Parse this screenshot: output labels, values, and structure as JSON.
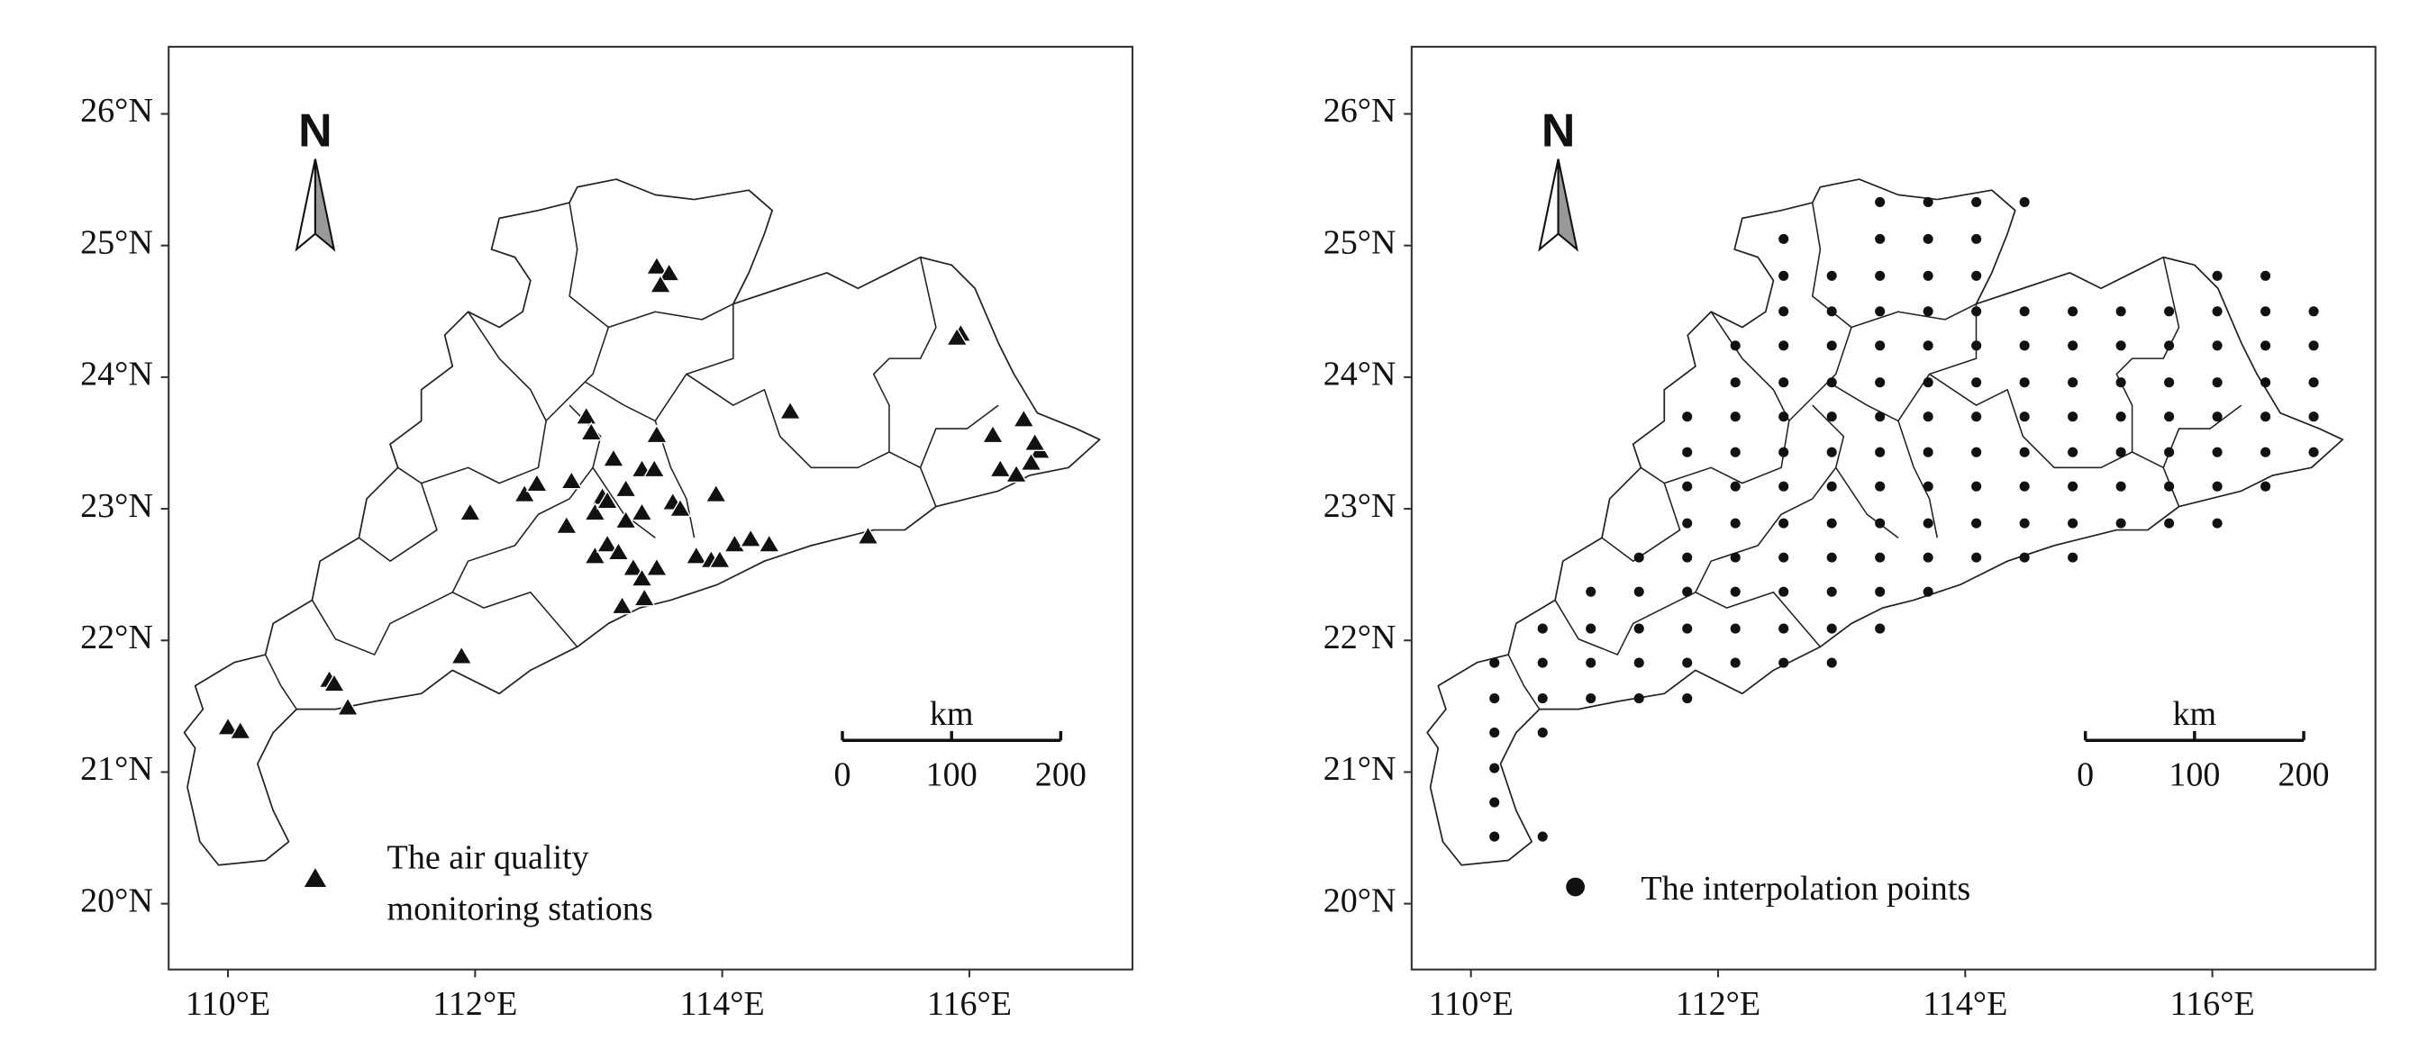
{
  "maps": [
    {
      "xlim": [
        109.52,
        117.32
      ],
      "ylim": [
        19.5,
        26.51
      ],
      "xticks": [
        {
          "value": 110,
          "label": "110°E"
        },
        {
          "value": 112,
          "label": "112°E"
        },
        {
          "value": 114,
          "label": "114°E"
        },
        {
          "value": 116,
          "label": "116°E"
        }
      ],
      "yticks": [
        {
          "value": 20,
          "label": "20°N"
        },
        {
          "value": 21,
          "label": "21°N"
        },
        {
          "value": 22,
          "label": "22°N"
        },
        {
          "value": 23,
          "label": "23°N"
        },
        {
          "value": 24,
          "label": "24°N"
        },
        {
          "value": 25,
          "label": "25°N"
        },
        {
          "value": 26,
          "label": "26°N"
        }
      ],
      "north": "N",
      "scale_bar": {
        "unit": "km",
        "ticks": [
          0,
          100,
          200
        ]
      },
      "legend": [
        "The air quality",
        "monitoring stations"
      ],
      "stations": {
        "lon": [
          113.47,
          113.57,
          113.5,
          115.93,
          115.9,
          114.55,
          116.19,
          116.44,
          116.25,
          116.57,
          116.5,
          116.38,
          116.53,
          112.9,
          112.94,
          111.96,
          112.4,
          112.5,
          112.78,
          113.12,
          113.47,
          113.35,
          113.03,
          113.22,
          113.45,
          112.74,
          112.97,
          113.07,
          113.22,
          113.35,
          113.6,
          113.66,
          113.95,
          112.97,
          113.07,
          113.16,
          113.28,
          113.35,
          113.47,
          113.19,
          113.37,
          113.79,
          113.91,
          114.1,
          114.23,
          114.38,
          113.98,
          115.18,
          111.89,
          110.82,
          110.86,
          110.97,
          110.0,
          110.1
        ],
        "lat": [
          24.83,
          24.78,
          24.69,
          24.32,
          24.29,
          23.73,
          23.55,
          23.67,
          23.29,
          23.43,
          23.34,
          23.25,
          23.49,
          23.69,
          23.57,
          22.96,
          23.1,
          23.18,
          23.2,
          23.37,
          23.55,
          23.29,
          23.08,
          23.14,
          23.29,
          22.86,
          22.96,
          23.05,
          22.9,
          22.96,
          23.04,
          22.99,
          23.1,
          22.63,
          22.72,
          22.66,
          22.54,
          22.46,
          22.54,
          22.25,
          22.31,
          22.63,
          22.6,
          22.72,
          22.76,
          22.72,
          22.6,
          22.78,
          21.87,
          21.69,
          21.66,
          21.48,
          21.33,
          21.3
        ]
      }
    },
    {
      "xlim": [
        109.52,
        117.32
      ],
      "ylim": [
        19.5,
        26.51
      ],
      "xticks": [
        {
          "value": 110,
          "label": "110°E"
        },
        {
          "value": 112,
          "label": "112°E"
        },
        {
          "value": 114,
          "label": "114°E"
        },
        {
          "value": 116,
          "label": "116°E"
        }
      ],
      "yticks": [
        {
          "value": 20,
          "label": "20°N"
        },
        {
          "value": 21,
          "label": "21°N"
        },
        {
          "value": 22,
          "label": "22°N"
        },
        {
          "value": 23,
          "label": "23°N"
        },
        {
          "value": 24,
          "label": "24°N"
        },
        {
          "value": 25,
          "label": "25°N"
        },
        {
          "value": 26,
          "label": "26°N"
        }
      ],
      "north": "N",
      "scale_bar": {
        "unit": "km",
        "ticks": [
          0,
          100,
          200
        ]
      },
      "legend": [
        "The interpolation points"
      ],
      "points": [
        {
          "lat": 25.33,
          "lon": [
            113.31,
            113.7,
            114.09,
            114.48
          ]
        },
        {
          "lat": 25.05,
          "lon": [
            112.53,
            113.31,
            113.7,
            114.09
          ]
        },
        {
          "lat": 24.77,
          "lon": [
            112.53,
            112.92,
            113.31,
            113.7,
            114.09,
            116.04,
            116.43
          ]
        },
        {
          "lat": 24.5,
          "lon": [
            112.53,
            112.92,
            113.31,
            113.7,
            114.09,
            114.48,
            114.87,
            115.26,
            115.65,
            116.04,
            116.43,
            116.82
          ]
        },
        {
          "lat": 24.24,
          "lon": [
            112.14,
            112.53,
            112.92,
            113.31,
            113.7,
            114.09,
            114.48,
            114.87,
            115.26,
            115.65,
            116.04,
            116.43,
            116.82
          ]
        },
        {
          "lat": 23.96,
          "lon": [
            112.14,
            112.53,
            112.92,
            113.31,
            113.7,
            114.09,
            114.48,
            114.87,
            115.26,
            115.65,
            116.04,
            116.43,
            116.82
          ]
        },
        {
          "lat": 23.7,
          "lon": [
            111.75,
            112.14,
            112.53,
            112.92,
            113.31,
            113.7,
            114.09,
            114.48,
            114.87,
            115.26,
            115.65,
            116.04,
            116.43,
            116.82
          ]
        },
        {
          "lat": 23.43,
          "lon": [
            111.75,
            112.14,
            112.53,
            112.92,
            113.31,
            113.7,
            114.09,
            114.48,
            114.87,
            115.26,
            115.65,
            116.04,
            116.43,
            116.82
          ]
        },
        {
          "lat": 23.17,
          "lon": [
            111.75,
            112.14,
            112.53,
            112.92,
            113.31,
            113.7,
            114.09,
            114.48,
            114.87,
            115.26,
            115.65,
            116.04,
            116.43
          ]
        },
        {
          "lat": 22.89,
          "lon": [
            111.75,
            112.14,
            112.53,
            112.92,
            113.31,
            113.7,
            114.09,
            114.48,
            114.87,
            115.26,
            115.65,
            116.04
          ]
        },
        {
          "lat": 22.63,
          "lon": [
            111.36,
            111.75,
            112.14,
            112.53,
            112.92,
            113.31,
            113.7,
            114.09,
            114.48,
            114.87
          ]
        },
        {
          "lat": 22.37,
          "lon": [
            110.97,
            111.36,
            111.75,
            112.14,
            112.53,
            112.92,
            113.31,
            113.7
          ]
        },
        {
          "lat": 22.09,
          "lon": [
            110.58,
            110.97,
            111.36,
            111.75,
            112.14,
            112.53,
            112.92,
            113.31
          ]
        },
        {
          "lat": 21.83,
          "lon": [
            110.19,
            110.58,
            110.97,
            111.36,
            111.75,
            112.14,
            112.53,
            112.92
          ]
        },
        {
          "lat": 21.56,
          "lon": [
            110.19,
            110.58,
            110.97,
            111.36,
            111.75
          ]
        },
        {
          "lat": 21.3,
          "lon": [
            110.19,
            110.58
          ]
        },
        {
          "lat": 21.03,
          "lon": [
            110.19
          ]
        },
        {
          "lat": 20.77,
          "lon": [
            110.19
          ]
        },
        {
          "lat": 20.51,
          "lon": [
            110.19,
            110.58
          ]
        }
      ]
    }
  ]
}
